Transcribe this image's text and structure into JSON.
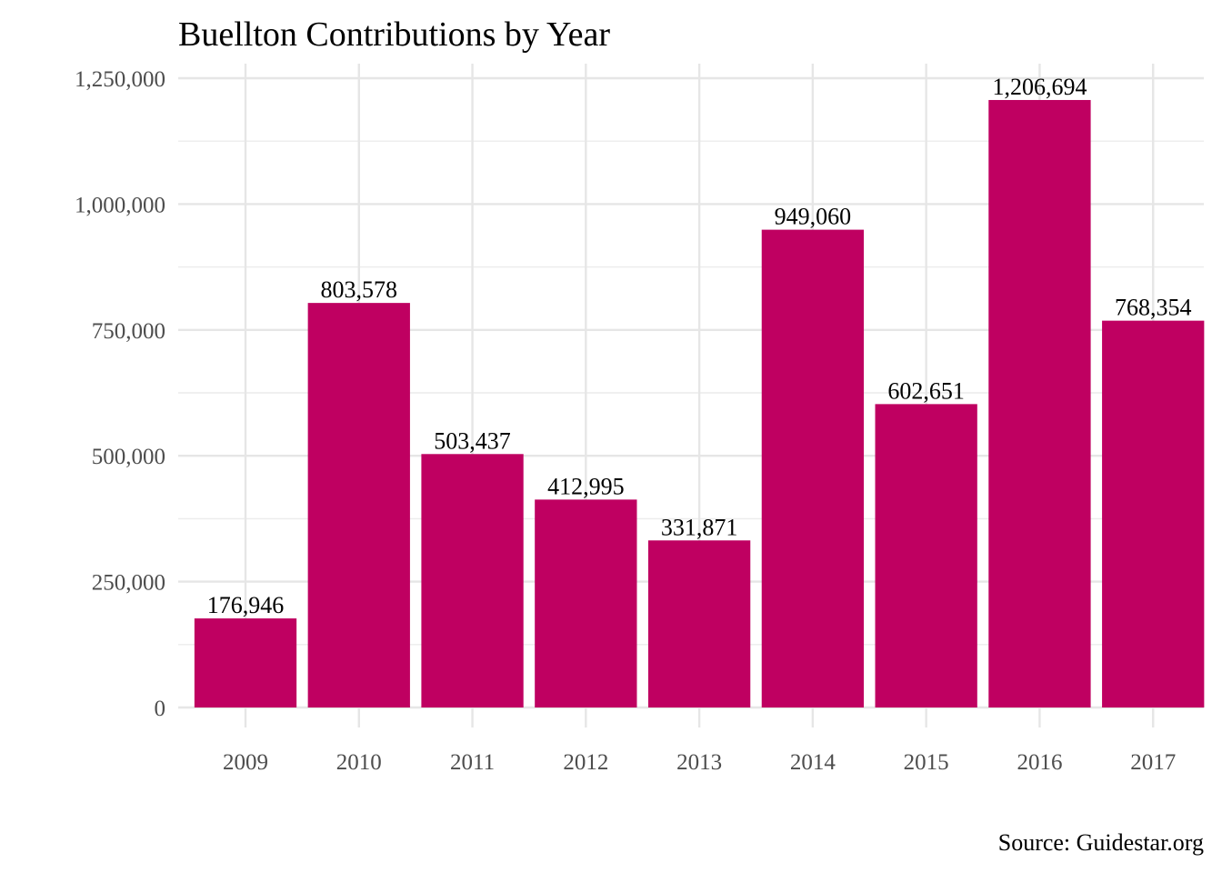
{
  "chart_data": {
    "type": "bar",
    "title": "Buellton Contributions by Year",
    "caption": "Source: Guidestar.org",
    "xlabel": "",
    "ylabel": "",
    "categories": [
      "2009",
      "2010",
      "2011",
      "2012",
      "2013",
      "2014",
      "2015",
      "2016",
      "2017"
    ],
    "values": [
      176946,
      803578,
      503437,
      412995,
      331871,
      949060,
      602651,
      1206694,
      768354
    ],
    "value_labels": [
      "176,946",
      "803,578",
      "503,437",
      "412,995",
      "331,871",
      "949,060",
      "602,651",
      "1,206,694",
      "768,354"
    ],
    "ylim": [
      0,
      1250000
    ],
    "y_ticks": [
      0,
      250000,
      500000,
      750000,
      1000000,
      1250000
    ],
    "y_tick_labels": [
      "0",
      "250,000",
      "500,000",
      "750,000",
      "1,000,000",
      "1,250,000"
    ],
    "grid": true,
    "bar_color": "#BF0061"
  }
}
